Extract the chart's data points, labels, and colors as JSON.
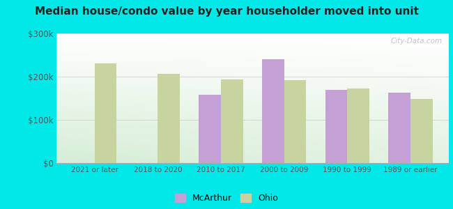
{
  "title": "Median house/condo value by year householder moved into unit",
  "categories": [
    "2021 or later",
    "2018 to 2020",
    "2010 to 2017",
    "2000 to 2009",
    "1990 to 1999",
    "1989 or earlier"
  ],
  "mcarthur_values": [
    null,
    null,
    158000,
    240000,
    170000,
    163000
  ],
  "ohio_values": [
    230000,
    207000,
    193000,
    192000,
    172000,
    148000
  ],
  "mcarthur_color": "#c4a0d4",
  "ohio_color": "#c8d4a0",
  "ylim": [
    0,
    300000
  ],
  "yticks": [
    0,
    100000,
    200000,
    300000
  ],
  "ytick_labels": [
    "$0",
    "$100k",
    "$200k",
    "$300k"
  ],
  "outer_bg": "#00e8e8",
  "legend_labels": [
    "McArthur",
    "Ohio"
  ],
  "watermark": "City-Data.com",
  "bar_width": 0.35,
  "tick_color": "#555555",
  "label_color": "#666666"
}
